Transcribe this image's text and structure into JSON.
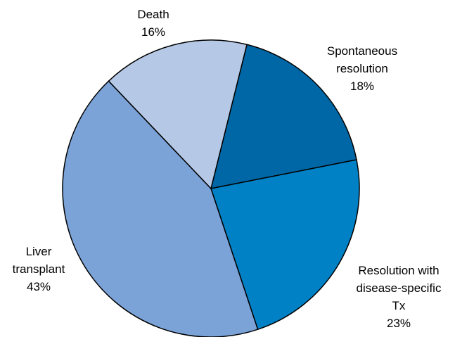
{
  "chart_data": {
    "type": "pie",
    "categories": [
      "Spontaneous resolution",
      "Resolution with disease-specific Tx",
      "Liver transplant",
      "Death"
    ],
    "values": [
      18,
      23,
      43,
      16
    ],
    "value_labels": [
      "18%",
      "23%",
      "43%",
      "16%"
    ],
    "colors": [
      "#0067a6",
      "#0081c6",
      "#7ba3d8",
      "#b5c9e6"
    ]
  }
}
